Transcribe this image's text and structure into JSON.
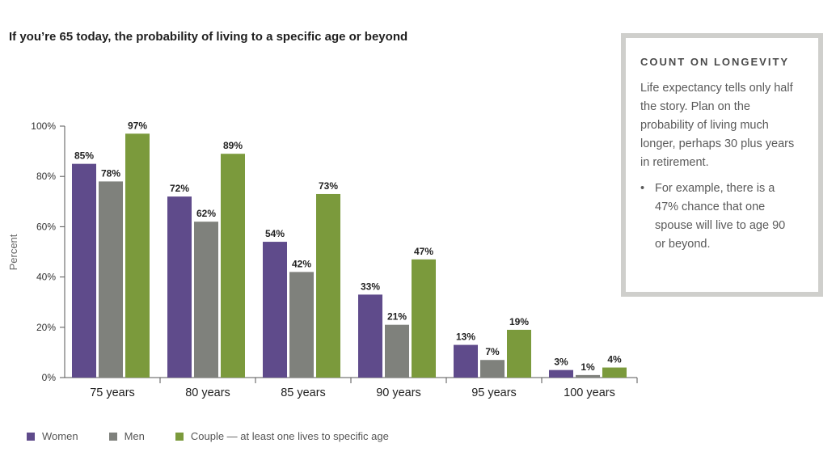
{
  "title": "If you’re 65 today, the probability of living to a specific age or beyond",
  "chart_data": {
    "type": "bar",
    "title": "If you’re 65 today, the probability of living to a specific age or beyond",
    "xlabel": "",
    "ylabel": "Percent",
    "ylim": [
      0,
      100
    ],
    "yticks": [
      "0%",
      "20%",
      "40%",
      "60%",
      "80%",
      "100%"
    ],
    "ytick_values": [
      0,
      20,
      40,
      60,
      80,
      100
    ],
    "grid": false,
    "legend_position": "bottom",
    "categories": [
      "75 years",
      "80 years",
      "85 years",
      "90 years",
      "95 years",
      "100 years"
    ],
    "series": [
      {
        "name": "Women",
        "color": "#5f4b8b",
        "values": [
          85,
          72,
          54,
          33,
          13,
          3
        ],
        "labels": [
          "85%",
          "72%",
          "54%",
          "33%",
          "13%",
          "3%"
        ]
      },
      {
        "name": "Men",
        "color": "#7f817c",
        "values": [
          78,
          62,
          42,
          21,
          7,
          1
        ],
        "labels": [
          "78%",
          "62%",
          "42%",
          "21%",
          "7%",
          "1%"
        ]
      },
      {
        "name": "Couple — at least one lives to specific age",
        "color": "#7b9a3c",
        "values": [
          97,
          89,
          73,
          47,
          19,
          4
        ],
        "labels": [
          "97%",
          "89%",
          "73%",
          "47%",
          "19%",
          "4%"
        ]
      }
    ]
  },
  "sidebar": {
    "heading": "COUNT ON LONGEVITY",
    "body": "Life expectancy tells only half the story. Plan on the probability of living much longer, perhaps 30 plus years in retirement.",
    "bullets": [
      "For example, there is a 47% chance that one spouse will live to age 90 or beyond."
    ]
  }
}
